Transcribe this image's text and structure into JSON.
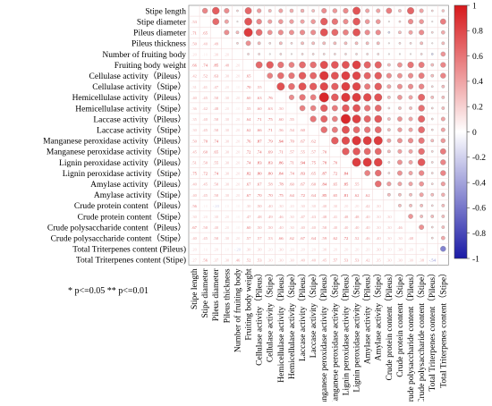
{
  "chart_data": {
    "type": "heatmap",
    "variables": [
      "Stipe length",
      "Stipe diameter",
      "Pileus diameter",
      "Pileus thickness",
      "Number of fruiting body",
      "Fruiting body weight",
      "Cellulase activity（Pileus）",
      "Cellulase activity（Stipe）",
      "Hemicellulase activity（Pileus）",
      "Hemicellulase activity（Stipe）",
      "Laccase activity（Pileus）",
      "Laccase activity（Stipe）",
      "Manganese peroxidase activity（Pileus）",
      "Manganese peroxidase activity（Stipe）",
      "Lignin peroxidase activity（Pileus）",
      "Lignin peroxidase activity（Stipe）",
      "Amylase activity（Pileus）",
      "Amylase activity（Stipe）",
      "Crude protein content（Pileus）",
      "Crude protein content（Stipe）",
      "Crude polysaccharide content（Pileus）",
      "Crude polysaccharide content（Stipe）",
      "Total Triterpenes content (Pileus)",
      "Total Triterpenes content (Stipe)"
    ],
    "column_labels": [
      "Stipe length",
      "Stipe diameter",
      "Pileus diameter",
      "Pileus thickness",
      "Number of fruiting body",
      "Fruiting body weight",
      "Cellulase activity（Pileus）",
      "Cellulase activity（Stipe）",
      "Hemicellulase activity（Pileus）",
      "Hemicellulase activity（Stipe）",
      "Laccase activity（Pileus）",
      "Laccase activity（Stipe）",
      "Manganese peroxidase activity（Pileus）",
      "Manganese peroxidase activity（Stipe）",
      "Lignin peroxidase activity（Pileus）",
      "Lignin peroxidase activity（Stipe）",
      "Amylase activity（Pileus）",
      "Amylase activity（Stipe）",
      "Crude protein content（Pileus）",
      "Crude protein content（Stipe）",
      "Crude polysaccharide content（Pileus）",
      "Crude polysaccharide content（Stipe）",
      "Total Triterpenes content（Pileus）",
      "Total Triterpenes content（Stipe）"
    ],
    "lower_triangle_values": [
      [],
      [
        0.53
      ],
      [
        0.71,
        0.65
      ],
      [
        0.5,
        0.4,
        0.49
      ],
      [
        0.2,
        0.1,
        0.3,
        0.2
      ],
      [
        0.66,
        0.74,
        0.85,
        0.48,
        0.2
      ],
      [
        0.42,
        0.52,
        0.63,
        0.3,
        0.2,
        0.65
      ],
      [
        0.31,
        0.41,
        0.47,
        0.2,
        0.1,
        0.7,
        0.55
      ],
      [
        0.4,
        0.45,
        0.5,
        0.3,
        0.2,
        0.6,
        0.63,
        0.76
      ],
      [
        0.36,
        0.42,
        0.48,
        0.2,
        0.1,
        0.55,
        0.6,
        0.63,
        0.5
      ],
      [
        0.35,
        0.4,
        0.5,
        0.3,
        0.2,
        0.64,
        0.71,
        0.75,
        0.6,
        0.55
      ],
      [
        0.3,
        0.45,
        0.5,
        0.3,
        0.2,
        0.62,
        0.66,
        0.71,
        0.56,
        0.54,
        0.6
      ],
      [
        0.5,
        0.7,
        0.74,
        0.3,
        0.2,
        0.76,
        0.87,
        0.79,
        0.94,
        0.7,
        0.67,
        0.62
      ],
      [
        0.45,
        0.6,
        0.65,
        0.3,
        0.2,
        0.72,
        0.74,
        0.69,
        0.71,
        0.57,
        0.55,
        0.57,
        0.7
      ],
      [
        0.51,
        0.5,
        0.55,
        0.3,
        0.2,
        0.74,
        0.83,
        0.83,
        0.86,
        0.71,
        0.94,
        0.75,
        0.78,
        0.7
      ],
      [
        0.75,
        0.72,
        0.74,
        0.3,
        0.2,
        0.82,
        0.8,
        0.8,
        0.84,
        0.74,
        0.83,
        0.65,
        0.87,
        0.72,
        0.84
      ],
      [
        0.4,
        0.45,
        0.5,
        0.3,
        0.2,
        0.67,
        0.67,
        0.58,
        0.78,
        0.6,
        0.67,
        0.6,
        0.84,
        0.65,
        0.85,
        0.55
      ],
      [
        0.4,
        0.45,
        0.5,
        0.3,
        0.2,
        0.67,
        0.7,
        0.7,
        0.75,
        0.64,
        0.72,
        0.64,
        0.85,
        0.65,
        0.81,
        0.62,
        0.62
      ],
      [
        0.56,
        0.1,
        -0.2,
        0.1,
        0.1,
        0.3,
        0.5,
        0.4,
        0.3,
        0.2,
        0.3,
        0.3,
        0.4,
        0.3,
        0.2,
        0.2,
        0.42,
        0.3
      ],
      [
        0.3,
        0.2,
        0.3,
        0.2,
        0.1,
        0.47,
        0.48,
        0.49,
        0.46,
        0.3,
        0.47,
        0.43,
        0.48,
        0.41,
        0.48,
        0.48,
        0.4,
        0.3,
        0.3
      ],
      [
        0.67,
        0.5,
        0.4,
        0.2,
        0.1,
        0.6,
        0.5,
        0.5,
        0.4,
        0.3,
        0.4,
        0.4,
        0.5,
        0.4,
        0.4,
        0.4,
        0.4,
        0.3,
        0.3,
        0.46
      ],
      [
        0.4,
        0.45,
        0.5,
        0.3,
        0.2,
        0.57,
        0.57,
        0.53,
        0.66,
        0.62,
        0.67,
        0.64,
        0.59,
        0.62,
        0.72,
        0.52,
        0.46,
        0.4,
        0.3,
        0.3,
        0.48
      ],
      [
        0.2,
        0.1,
        0.2,
        0.1,
        -0.2,
        0.3,
        0.3,
        0.2,
        0.3,
        0.2,
        0.2,
        0.2,
        0.3,
        0.2,
        0.2,
        0.2,
        0.2,
        0.3,
        0.2,
        0.3,
        0.2,
        0.2
      ],
      [
        0.27,
        0.56,
        0.37,
        0.3,
        0.46,
        0.52,
        0.53,
        0.3,
        0.3,
        0.3,
        0.4,
        0.4,
        0.45,
        0.57,
        0.53,
        0.53,
        0.42,
        0.35,
        0.3,
        0.3,
        0.3,
        0.38,
        -0.54
      ]
    ],
    "colorbar": {
      "min": -1,
      "max": 1,
      "ticks": [
        "1",
        "0.8",
        "0.6",
        "0.4",
        "0.2",
        "0",
        "-0.2",
        "-0.4",
        "-0.6",
        "-0.8",
        "-1"
      ],
      "positive_color": "#d7191c",
      "zero_color": "#ffffff",
      "negative_color": "#1a1aa6"
    },
    "significance_note": "* p<=0.05  ** p<=0.01"
  }
}
